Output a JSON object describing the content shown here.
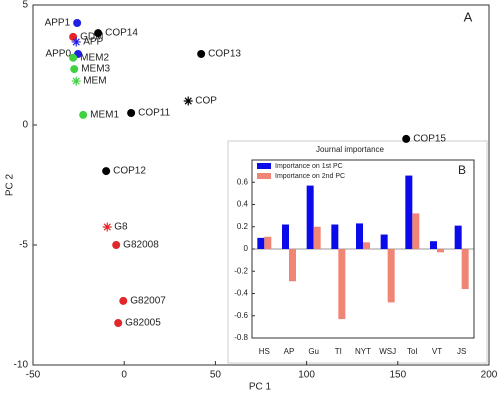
{
  "chart_data": [
    {
      "type": "scatter",
      "annotation": "A",
      "x_label": "PC 1",
      "y_label": "PC 2",
      "xlim": [
        -50,
        200
      ],
      "xticks": [
        -50,
        0,
        50,
        100,
        150,
        200
      ],
      "ylim": [
        -10,
        5
      ],
      "yticks": [
        -10,
        -5,
        0,
        5
      ],
      "points": [
        {
          "label": "APP1",
          "x": -25.8,
          "y": 4.25,
          "color": "#1f1fe6",
          "marker": "dot"
        },
        {
          "label": "GDM",
          "x": -28,
          "y": 3.67,
          "color": "#e3262a",
          "marker": "dot"
        },
        {
          "label": "APP",
          "x": -26.3,
          "y": 3.46,
          "color": "#1f1fe6",
          "marker": "star"
        },
        {
          "label": "APP0",
          "x": -25.3,
          "y": 2.96,
          "color": "#1f1fe6",
          "marker": "dot"
        },
        {
          "label": "MEM2",
          "x": -28,
          "y": 2.8,
          "color": "#3fd13f",
          "marker": "dot"
        },
        {
          "label": "MEM3",
          "x": -27.4,
          "y": 2.33,
          "color": "#3fd13f",
          "marker": "dot"
        },
        {
          "label": "MEM",
          "x": -26.3,
          "y": 1.83,
          "color": "#3fd13f",
          "marker": "star"
        },
        {
          "label": "MEM1",
          "x": -22.5,
          "y": 0.42,
          "color": "#3fd13f",
          "marker": "dot"
        },
        {
          "label": "COP14",
          "x": -14.3,
          "y": 3.83,
          "color": "#000000",
          "marker": "dot"
        },
        {
          "label": "COP13",
          "x": 42.2,
          "y": 2.96,
          "color": "#000000",
          "marker": "dot"
        },
        {
          "label": "COP",
          "x": 35.1,
          "y": 1.0,
          "color": "#000000",
          "marker": "star"
        },
        {
          "label": "COP11",
          "x": 3.8,
          "y": 0.5,
          "color": "#000000",
          "marker": "dot"
        },
        {
          "label": "COP15",
          "x": 154.6,
          "y": -0.58,
          "color": "#000000",
          "marker": "dot"
        },
        {
          "label": "COP12",
          "x": -9.9,
          "y": -1.92,
          "color": "#000000",
          "marker": "dot"
        },
        {
          "label": "G8",
          "x": -9.3,
          "y": -4.25,
          "color": "#e3262a",
          "marker": "star"
        },
        {
          "label": "G82008",
          "x": -4.4,
          "y": -5.0,
          "color": "#e3262a",
          "marker": "dot"
        },
        {
          "label": "G82007",
          "x": -0.5,
          "y": -7.33,
          "color": "#e3262a",
          "marker": "dot"
        },
        {
          "label": "G82005",
          "x": -3.3,
          "y": -8.25,
          "color": "#e3262a",
          "marker": "dot"
        }
      ]
    },
    {
      "type": "bar",
      "title": "Journal importance",
      "annotation": "B",
      "legend": "upper left",
      "categories": [
        "HS",
        "AP",
        "Gu",
        "TI",
        "NYT",
        "WSJ",
        "ToI",
        "VT",
        "JS"
      ],
      "ylim": [
        -0.8,
        0.8
      ],
      "yticks": [
        -0.8,
        -0.6,
        -0.4,
        -0.2,
        0,
        0.2,
        0.4,
        0.6
      ],
      "series": [
        {
          "name": "Importance on 1st PC",
          "color": "#0a0aeb",
          "values": [
            0.1,
            0.22,
            0.57,
            0.22,
            0.23,
            0.13,
            0.66,
            0.07,
            0.21
          ]
        },
        {
          "name": "Importance on 2nd PC",
          "color": "#f08575",
          "values": [
            0.11,
            -0.29,
            0.2,
            -0.63,
            0.06,
            -0.48,
            0.32,
            -0.03,
            -0.36
          ]
        }
      ]
    }
  ]
}
